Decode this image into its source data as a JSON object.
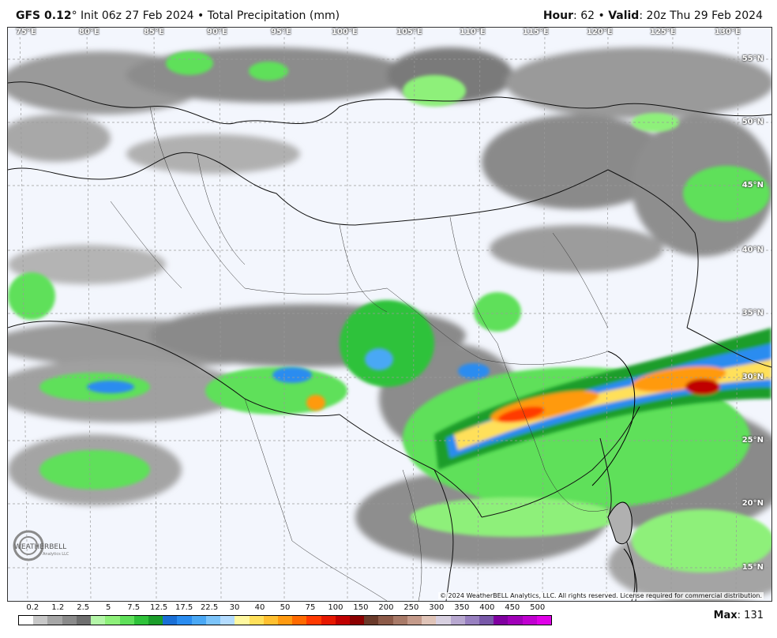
{
  "header": {
    "model": "GFS 0.12",
    "degree": "°",
    "init_text": "Init 06z 27 Feb 2024 • Total Precipitation (mm)",
    "hour_label": "Hour",
    "hour_value": ": 62 • ",
    "valid_label": "Valid",
    "valid_value": ": 20z Thu 29 Feb 2024"
  },
  "map": {
    "lon_labels": [
      "75°E",
      "80°E",
      "85°E",
      "90°E",
      "95°E",
      "100°E",
      "105°E",
      "110°E",
      "115°E",
      "120°E",
      "125°E",
      "130°E"
    ],
    "lat_labels": [
      "55°N",
      "50°N",
      "45°N",
      "40°N",
      "35°N",
      "30°N",
      "25°N",
      "20°N",
      "15°N"
    ],
    "copyright": "© 2024 WeatherBELL Analytics, LLC. All rights reserved. License required for commercial distribution.",
    "logo_text": "WEATHERBELL",
    "logo_sub": "Analytics LLC"
  },
  "colorbar": {
    "ticks": [
      "0.2",
      "1.2",
      "2.5",
      "5",
      "7.5",
      "12.5",
      "17.5",
      "22.5",
      "30",
      "40",
      "50",
      "75",
      "100",
      "150",
      "200",
      "250",
      "300",
      "350",
      "400",
      "450",
      "500"
    ],
    "colors": [
      "#ffffff",
      "#c8c8c8",
      "#a6a6a6",
      "#8a8a8a",
      "#6e6e6e",
      "#b4f5a8",
      "#8ef07a",
      "#5fe05a",
      "#2fc23a",
      "#1b9d2a",
      "#1a6fd6",
      "#2a8cf0",
      "#4aa8f5",
      "#7cc4fa",
      "#b4dcff",
      "#fff8a0",
      "#ffe05a",
      "#ffc030",
      "#ff9a10",
      "#ff6a00",
      "#ff3a00",
      "#e61800",
      "#c00000",
      "#8c0000",
      "#6a3a2a",
      "#8c5a48",
      "#a87a68",
      "#c49a8a",
      "#e0c4b8",
      "#d8d0e0",
      "#b8a8d0",
      "#9880c0",
      "#7858a8",
      "#8000a0",
      "#a000b8",
      "#c000d0",
      "#e000e8"
    ]
  },
  "max": {
    "label": "Max",
    "value": ": 131"
  }
}
